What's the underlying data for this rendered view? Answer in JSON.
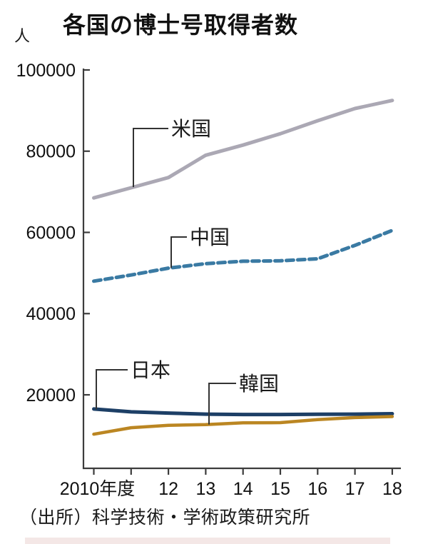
{
  "page": {
    "title": "各国の博士号取得者数",
    "unit_label": "人",
    "source": "（出所）科学技術・学術政策研究所"
  },
  "chart_data": {
    "type": "line",
    "title": "各国の博士号取得者数",
    "ylabel": "人",
    "xlabel": "年度",
    "x": [
      2010,
      2011,
      2012,
      2013,
      2014,
      2015,
      2016,
      2017,
      2018
    ],
    "x_tick_labels": [
      "2010年度",
      "",
      "12",
      "13",
      "14",
      "15",
      "16",
      "17",
      "18"
    ],
    "ylim": [
      0,
      100000
    ],
    "y_ticks": [
      20000,
      40000,
      60000,
      80000,
      100000
    ],
    "grid": false,
    "legend_position": "inline-callout-labels",
    "axis_color": "#3c3c3c",
    "series": [
      {
        "name": "米国",
        "color": "#aba8b4",
        "line_style": "solid",
        "values": [
          68500,
          71000,
          73500,
          79000,
          81500,
          84300,
          87500,
          90500,
          92500
        ]
      },
      {
        "name": "中国",
        "color": "#3a7aa3",
        "line_style": "dashed",
        "values": [
          48000,
          49500,
          51200,
          52300,
          52900,
          53000,
          53500,
          56800,
          60500
        ]
      },
      {
        "name": "日本",
        "color": "#1d3f66",
        "line_style": "solid",
        "values": [
          16500,
          15800,
          15500,
          15250,
          15150,
          15150,
          15200,
          15250,
          15350
        ]
      },
      {
        "name": "韓国",
        "color": "#bb8622",
        "line_style": "solid",
        "values": [
          10300,
          11900,
          12500,
          12650,
          13100,
          13150,
          13900,
          14400,
          14650
        ]
      }
    ]
  }
}
